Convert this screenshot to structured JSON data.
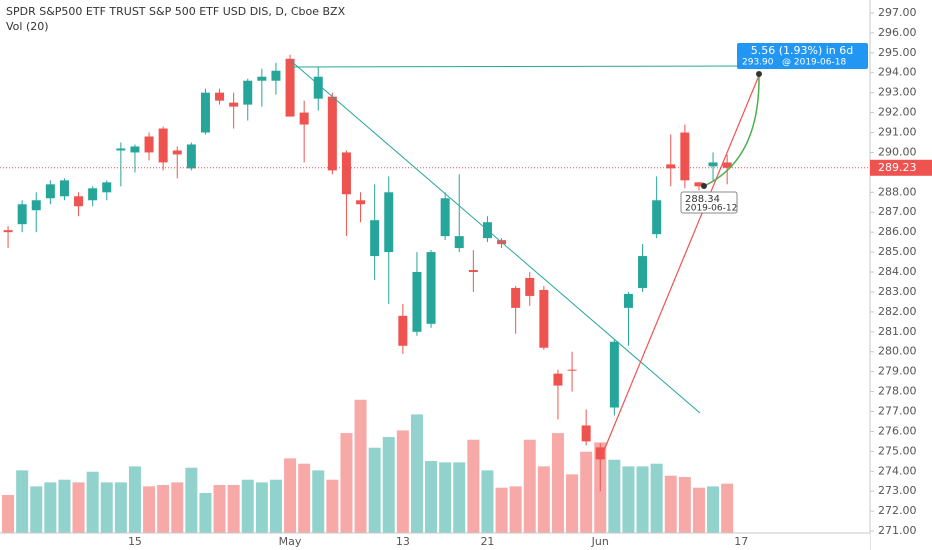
{
  "chart_data": {
    "type": "candlestick",
    "title": "SPDR S&P500 ETF TRUST S&P 500 ETF USD DIS, D, Cboe BZX",
    "volume_label": "Vol (20)",
    "categories": [
      null,
      null,
      null,
      null,
      null,
      null,
      null,
      null,
      null,
      "15",
      null,
      null,
      null,
      null,
      null,
      null,
      null,
      null,
      null,
      null,
      "May",
      null,
      null,
      null,
      null,
      null,
      null,
      null,
      "13",
      null,
      null,
      null,
      null,
      null,
      "21",
      null,
      null,
      null,
      null,
      null,
      null,
      null,
      "Jun",
      null,
      null,
      null,
      null,
      null,
      null,
      null,
      null,
      null,
      "17"
    ],
    "open": [
      286.1,
      286.4,
      287.1,
      287.7,
      287.8,
      287.8,
      287.6,
      288.0,
      290.1,
      290.0,
      290.8,
      291.2,
      290.1,
      289.2,
      291.0,
      293.0,
      292.5,
      292.4,
      293.6,
      293.6,
      294.7,
      292.0,
      292.7,
      292.8,
      290.0,
      287.6,
      284.8,
      285.0,
      281.8,
      281.0,
      281.4,
      285.8,
      285.2,
      284.1,
      285.7,
      285.6,
      283.2,
      283.7,
      283.1,
      278.9,
      279.1,
      276.3,
      275.2,
      277.2,
      282.2,
      283.2,
      285.9,
      289.4,
      291.0,
      288.5,
      289.3,
      289.5,
      null
    ],
    "high": [
      286.3,
      287.6,
      288.0,
      288.6,
      288.7,
      288.0,
      288.3,
      288.6,
      290.5,
      290.4,
      291.0,
      291.3,
      290.3,
      290.5,
      293.2,
      293.2,
      293.0,
      293.7,
      294.2,
      294.5,
      294.9,
      292.6,
      294.3,
      293.0,
      290.1,
      288.0,
      288.4,
      288.8,
      282.4,
      285.0,
      285.1,
      288.0,
      288.9,
      285.1,
      286.8,
      285.7,
      283.3,
      284.0,
      283.3,
      279.1,
      280.0,
      277.1,
      275.4,
      280.6,
      283.0,
      285.4,
      288.8,
      290.9,
      291.4,
      288.5,
      290.0,
      289.9,
      null
    ],
    "low": [
      285.2,
      286.0,
      286.0,
      287.4,
      287.6,
      286.8,
      287.3,
      287.6,
      288.3,
      289.0,
      289.6,
      289.1,
      288.7,
      289.1,
      290.9,
      292.4,
      291.2,
      291.6,
      292.3,
      292.9,
      291.8,
      289.5,
      292.1,
      288.9,
      285.8,
      286.5,
      283.6,
      282.4,
      279.9,
      280.8,
      281.2,
      285.6,
      285.0,
      283.0,
      285.5,
      285.2,
      280.9,
      282.3,
      280.1,
      276.6,
      278.0,
      275.3,
      273.0,
      276.8,
      280.3,
      283.0,
      285.7,
      288.3,
      288.2,
      288.1,
      288.6,
      288.4,
      null
    ],
    "close": [
      286.0,
      287.4,
      287.6,
      288.4,
      288.6,
      287.3,
      288.2,
      288.5,
      290.2,
      290.3,
      290.0,
      289.5,
      289.9,
      290.4,
      293.0,
      292.6,
      292.3,
      293.6,
      293.8,
      294.1,
      291.8,
      291.4,
      293.8,
      289.1,
      287.9,
      287.4,
      286.6,
      288.0,
      280.3,
      284.0,
      285.0,
      287.7,
      285.8,
      284.0,
      286.5,
      285.4,
      282.2,
      282.8,
      280.2,
      278.3,
      279.05,
      275.5,
      274.6,
      280.5,
      282.9,
      284.8,
      287.6,
      289.2,
      288.6,
      288.3,
      289.5,
      289.23,
      null
    ],
    "volume": [
      28.5,
      47,
      35,
      38,
      40,
      38,
      46,
      38,
      38,
      50,
      35,
      36,
      38,
      49,
      30,
      36,
      36,
      40,
      38,
      40,
      56,
      52,
      47,
      40,
      75,
      100,
      64,
      72,
      77,
      89,
      54,
      53,
      53,
      70,
      47,
      34,
      35,
      70,
      50,
      75,
      44,
      61,
      68,
      55,
      50,
      50,
      52,
      43,
      42,
      34,
      35,
      37,
      null
    ],
    "up_color": "#26a69a",
    "down_color": "#ef5350",
    "up_volume_color": "#92d2cc",
    "down_volume_color": "#f7a9a7",
    "ylim": [
      270.05,
      297.65
    ],
    "volume_lim": [
      0,
      400
    ],
    "yticks": [
      {
        "value": 271,
        "label": "271.00"
      },
      {
        "value": 272,
        "label": "272.00"
      },
      {
        "value": 273,
        "label": "273.00"
      },
      {
        "value": 274,
        "label": "274.00"
      },
      {
        "value": 275,
        "label": "275.00"
      },
      {
        "value": 276,
        "label": "276.00"
      },
      {
        "value": 277,
        "label": "277.00"
      },
      {
        "value": 278,
        "label": "278.00"
      },
      {
        "value": 279,
        "label": "279.00"
      },
      {
        "value": 280,
        "label": "280.00"
      },
      {
        "value": 281,
        "label": "281.00"
      },
      {
        "value": 282,
        "label": "282.00"
      },
      {
        "value": 283,
        "label": "283.00"
      },
      {
        "value": 284,
        "label": "284.00"
      },
      {
        "value": 285,
        "label": "285.00"
      },
      {
        "value": 286,
        "label": "286.00"
      },
      {
        "value": 287,
        "label": "287.00"
      },
      {
        "value": 288,
        "label": "288.00"
      },
      {
        "value": 289,
        "label": "289.00"
      },
      {
        "value": 290,
        "label": "290.00"
      },
      {
        "value": 291,
        "label": "291.00"
      },
      {
        "value": 292,
        "label": "292.00"
      },
      {
        "value": 293,
        "label": "293.00"
      },
      {
        "value": 294,
        "label": "294.00"
      },
      {
        "value": 295,
        "label": "295.00"
      },
      {
        "value": 296,
        "label": "296.00"
      },
      {
        "value": 297,
        "label": "297.00"
      }
    ],
    "last_price": 289.23,
    "grid": false,
    "measure": {
      "label": "5.56 (1.93%) in 6d",
      "price": "293.90",
      "date": "@ 2019-06-18"
    },
    "marker": {
      "price": "288.34",
      "date": "2019-06-12"
    }
  }
}
